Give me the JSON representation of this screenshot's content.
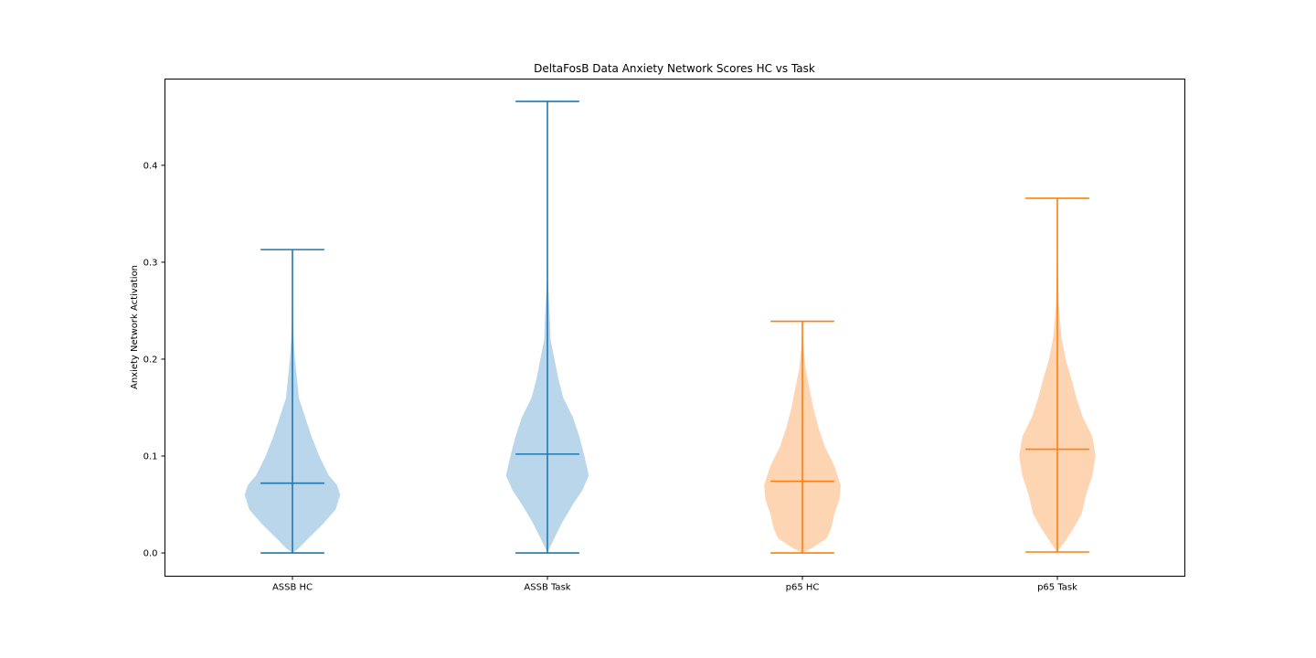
{
  "chart_data": {
    "type": "violin",
    "title": "DeltaFosB Data Anxiety Network Scores HC vs Task",
    "xlabel": "",
    "ylabel": "Anxiety Network Activation",
    "ylim": [
      -0.024,
      0.489
    ],
    "yticks": [
      0.0,
      0.1,
      0.2,
      0.3,
      0.4
    ],
    "ytick_labels": [
      "0.0",
      "0.1",
      "0.2",
      "0.3",
      "0.4"
    ],
    "grid": false,
    "categories": [
      "ASSB HC",
      "ASSB Task",
      "p65 HC",
      "p65 Task"
    ],
    "series": [
      {
        "category": "ASSB HC",
        "color": "#1f77b4",
        "fill": "#bad6ea",
        "min": 0.0,
        "max": 0.313,
        "median": 0.072,
        "density": [
          [
            0.0,
            0.0
          ],
          [
            0.005,
            0.1
          ],
          [
            0.015,
            0.25
          ],
          [
            0.03,
            0.48
          ],
          [
            0.045,
            0.68
          ],
          [
            0.06,
            0.75
          ],
          [
            0.07,
            0.7
          ],
          [
            0.08,
            0.57
          ],
          [
            0.1,
            0.42
          ],
          [
            0.12,
            0.3
          ],
          [
            0.14,
            0.2
          ],
          [
            0.16,
            0.1
          ],
          [
            0.18,
            0.07
          ],
          [
            0.2,
            0.04
          ],
          [
            0.22,
            0.02
          ],
          [
            0.24,
            0.01
          ],
          [
            0.27,
            0.005
          ],
          [
            0.313,
            0.0
          ]
        ]
      },
      {
        "category": "ASSB Task",
        "color": "#1f77b4",
        "fill": "#bad6ea",
        "min": 0.0,
        "max": 0.466,
        "median": 0.102,
        "density": [
          [
            0.0,
            0.0
          ],
          [
            0.01,
            0.07
          ],
          [
            0.03,
            0.22
          ],
          [
            0.05,
            0.4
          ],
          [
            0.065,
            0.55
          ],
          [
            0.08,
            0.65
          ],
          [
            0.1,
            0.58
          ],
          [
            0.12,
            0.5
          ],
          [
            0.14,
            0.4
          ],
          [
            0.16,
            0.25
          ],
          [
            0.18,
            0.17
          ],
          [
            0.2,
            0.11
          ],
          [
            0.22,
            0.05
          ],
          [
            0.24,
            0.04
          ],
          [
            0.26,
            0.025
          ],
          [
            0.28,
            0.01
          ],
          [
            0.32,
            0.004
          ],
          [
            0.38,
            0.002
          ],
          [
            0.466,
            0.0
          ]
        ]
      },
      {
        "category": "p65 HC",
        "color": "#ff7f0e",
        "fill": "#fed5b3",
        "min": 0.0,
        "max": 0.239,
        "median": 0.074,
        "density": [
          [
            0.0,
            0.0
          ],
          [
            0.005,
            0.15
          ],
          [
            0.015,
            0.38
          ],
          [
            0.025,
            0.45
          ],
          [
            0.04,
            0.5
          ],
          [
            0.055,
            0.58
          ],
          [
            0.07,
            0.6
          ],
          [
            0.09,
            0.5
          ],
          [
            0.11,
            0.35
          ],
          [
            0.13,
            0.25
          ],
          [
            0.15,
            0.17
          ],
          [
            0.17,
            0.11
          ],
          [
            0.19,
            0.05
          ],
          [
            0.21,
            0.02
          ],
          [
            0.239,
            0.0
          ]
        ]
      },
      {
        "category": "p65 Task",
        "color": "#ff7f0e",
        "fill": "#fed5b3",
        "min": 0.001,
        "max": 0.366,
        "median": 0.107,
        "density": [
          [
            0.001,
            0.0
          ],
          [
            0.01,
            0.1
          ],
          [
            0.025,
            0.25
          ],
          [
            0.04,
            0.38
          ],
          [
            0.06,
            0.45
          ],
          [
            0.08,
            0.55
          ],
          [
            0.1,
            0.6
          ],
          [
            0.12,
            0.55
          ],
          [
            0.14,
            0.4
          ],
          [
            0.16,
            0.3
          ],
          [
            0.18,
            0.22
          ],
          [
            0.2,
            0.13
          ],
          [
            0.22,
            0.07
          ],
          [
            0.24,
            0.04
          ],
          [
            0.26,
            0.02
          ],
          [
            0.3,
            0.008
          ],
          [
            0.366,
            0.0
          ]
        ]
      }
    ]
  }
}
